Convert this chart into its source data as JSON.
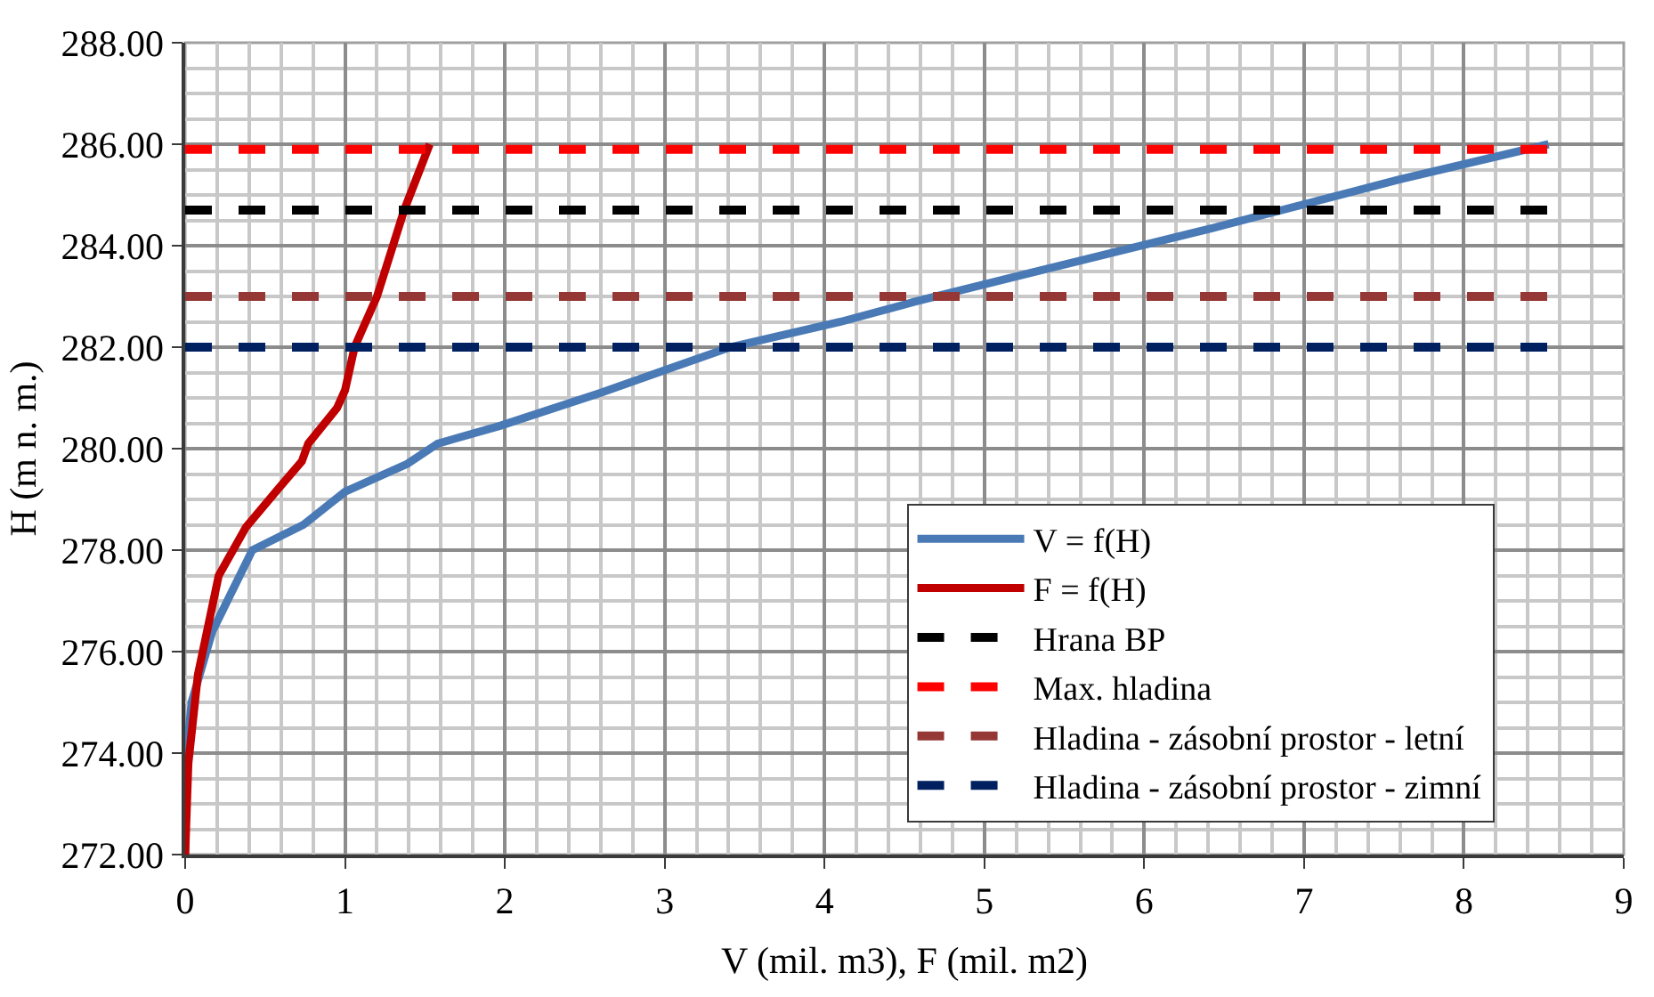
{
  "chart_data": {
    "type": "line",
    "xlabel": "V (mil. m3), F (mil. m2)",
    "ylabel": "H (m n. m.)",
    "xlim": [
      0,
      9
    ],
    "xticks": [
      0,
      1,
      2,
      3,
      4,
      5,
      6,
      7,
      8,
      9
    ],
    "ylim": [
      272,
      288
    ],
    "yticks": [
      {
        "value": 272,
        "label": "272.00"
      },
      {
        "value": 274,
        "label": "274.00"
      },
      {
        "value": 276,
        "label": "276.00"
      },
      {
        "value": 278,
        "label": "278.00"
      },
      {
        "value": 280,
        "label": "280.00"
      },
      {
        "value": 282,
        "label": "282.00"
      },
      {
        "value": 284,
        "label": "284.00"
      },
      {
        "value": 286,
        "label": "286.00"
      },
      {
        "value": 288,
        "label": "288.00"
      }
    ],
    "grid": true,
    "legend": "bottom right",
    "marker": "none",
    "series": [
      {
        "name": "V = f(H)",
        "color": "#4a7ab5",
        "line_style": "solid",
        "x": [
          0,
          0.01,
          0.04,
          0.17,
          0.42,
          0.74,
          1.0,
          1.39,
          1.58,
          1.97,
          2.6,
          3.41,
          4.1,
          4.57,
          5.27,
          6.43,
          7.59,
          8.53
        ],
        "values": [
          272,
          274,
          275,
          276.4,
          278.0,
          278.5,
          279.15,
          279.7,
          280.1,
          280.45,
          281.1,
          282.0,
          282.5,
          282.9,
          283.45,
          284.35,
          285.3,
          286.0
        ]
      },
      {
        "name": "F = f(H)",
        "color": "#c00000",
        "line_style": "solid",
        "x": [
          0,
          0.02,
          0.08,
          0.21,
          0.38,
          0.58,
          0.73,
          0.77,
          0.95,
          1.0,
          1.06,
          1.2,
          1.37,
          1.53
        ],
        "values": [
          272,
          273.8,
          275.55,
          277.5,
          278.45,
          279.2,
          279.75,
          280.1,
          280.8,
          281.15,
          282.0,
          283.0,
          284.7,
          286.0
        ]
      },
      {
        "name": "Hrana BP",
        "color": "#000000",
        "line_style": "dashed",
        "x": [
          0,
          8.53
        ],
        "values": [
          284.7,
          284.7
        ]
      },
      {
        "name": "Max. hladina",
        "color": "#ff0000",
        "line_style": "dashed",
        "x": [
          0,
          8.53
        ],
        "values": [
          285.9,
          285.9
        ]
      },
      {
        "name": "Hladina - zásobní prostor - letní",
        "color": "#953735",
        "line_style": "dashed",
        "x": [
          0,
          8.53
        ],
        "values": [
          283.0,
          283.0
        ]
      },
      {
        "name": "Hladina - zásobní prostor - zimní",
        "color": "#002060",
        "line_style": "dashed",
        "x": [
          0,
          8.53
        ],
        "values": [
          282.0,
          282.0
        ]
      }
    ]
  }
}
